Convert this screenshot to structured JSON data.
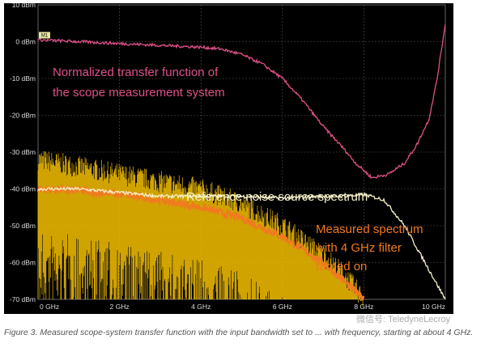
{
  "chart_data": {
    "type": "line",
    "title": "",
    "xlabel": "",
    "ylabel": "",
    "xlim": [
      0,
      10
    ],
    "ylim": [
      -70,
      10
    ],
    "grid": true,
    "x_ticks": [
      "0 GHz",
      "2 GHz",
      "4 GHz",
      "6 GHz",
      "8 GHz",
      "10 GHz"
    ],
    "y_ticks": [
      "10 dBm",
      "0 dBm",
      "-10 dBm",
      "-20 dBm",
      "-30 dBm",
      "-40 dBm",
      "-50 dBm",
      "-60 dBm",
      "-70 dBm"
    ],
    "marker_label": "M1",
    "series": [
      {
        "color": "#e0508a",
        "x": [
          0,
          1,
          2,
          3,
          4,
          4.5,
          5,
          5.5,
          6,
          6.5,
          7,
          7.5,
          7.8,
          8.2,
          8.6,
          9,
          9.3,
          9.6,
          9.8,
          10
        ],
        "y": [
          0.5,
          0,
          -0.5,
          -1,
          -1.5,
          -2,
          -3.5,
          -6,
          -10,
          -16,
          -23,
          -29,
          -33,
          -37,
          -36,
          -33,
          -28,
          -21,
          -10,
          5
        ]
      },
      {
        "color": "#f5f0c8",
        "x": [
          0,
          1,
          2,
          3,
          4,
          5,
          6,
          7,
          7.5,
          8,
          8.5,
          9,
          9.5,
          10
        ],
        "y": [
          -40,
          -40,
          -41,
          -42,
          -42,
          -42,
          -42.5,
          -42,
          -42,
          -41.5,
          -43,
          -50,
          -60,
          -70
        ]
      },
      {
        "color": "#f07a20",
        "x": [
          0,
          1,
          2,
          3,
          4,
          5,
          6,
          7,
          7.5,
          8
        ],
        "y": [
          -40,
          -40.5,
          -41.5,
          -43,
          -45,
          -48,
          -53,
          -60,
          -65,
          -70
        ]
      },
      {
        "color": "#f5c000",
        "type": "noise-band",
        "x": [
          0,
          1,
          2,
          3,
          4,
          5,
          6,
          7,
          7.5,
          8
        ],
        "y_top": [
          -32,
          -34,
          -36,
          -38,
          -40,
          -44,
          -50,
          -58,
          -63,
          -70
        ],
        "y_bottom": [
          -70,
          -70,
          -70,
          -70,
          -70,
          -70,
          -70,
          -70,
          -70,
          -70
        ]
      }
    ],
    "annotations": [
      {
        "text": "Normalized transfer function of",
        "color": "#e0508a"
      },
      {
        "text": "the scope measurement system",
        "color": "#e0508a"
      },
      {
        "text": "Reference noise source spectrum",
        "color": "#f5f0c8"
      },
      {
        "text": "Measured spectrum",
        "color": "#f07a20"
      },
      {
        "text": "with 4 GHz filter",
        "color": "#f07a20"
      },
      {
        "text": "turned on",
        "color": "#f07a20"
      }
    ]
  },
  "caption": "Figure 3. Measured scope-system transfer function with the input bandwidth set to ... with frequency, starting at about 4 GHz.",
  "watermark": "微信号: TeledyneLecroy"
}
